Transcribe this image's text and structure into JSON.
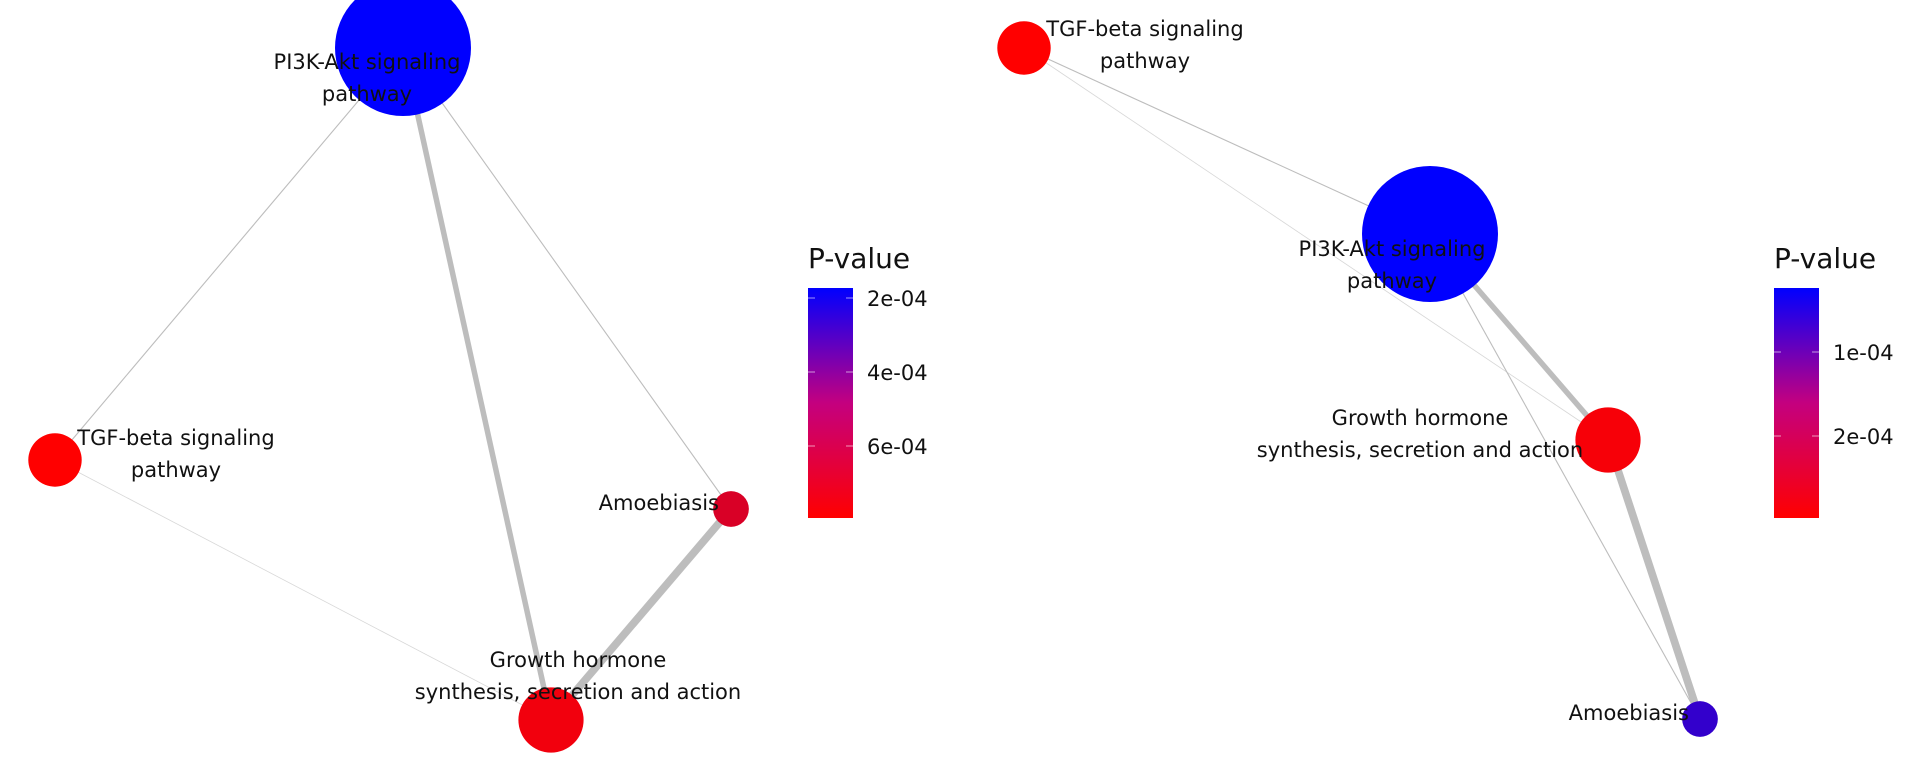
{
  "colors": {
    "low": "#ff0000",
    "high": "#0000ff",
    "edge": "#bdbdbd"
  },
  "chart_data": [
    {
      "type": "network",
      "legend_title": "P-value",
      "legend_ticks": [
        "2e-04",
        "4e-04",
        "6e-04"
      ],
      "nodes": [
        {
          "id": "pi3k",
          "label": [
            "PI3K-Akt signaling",
            "pathway"
          ],
          "color_level": 1.0,
          "size_level": 1.0
        },
        {
          "id": "tgf",
          "label": [
            "TGF-beta signaling",
            "pathway"
          ],
          "color_level": 0.0,
          "size_level": 0.3
        },
        {
          "id": "amoeb",
          "label": [
            "Amoebiasis"
          ],
          "color_level": 0.15,
          "size_level": 0.15
        },
        {
          "id": "gh",
          "label": [
            "Growth hormone",
            "synthesis, secretion and action"
          ],
          "color_level": 0.05,
          "size_level": 0.4
        }
      ],
      "edges": [
        {
          "source": "pi3k",
          "target": "tgf",
          "weight": 1
        },
        {
          "source": "pi3k",
          "target": "gh",
          "weight": 5
        },
        {
          "source": "pi3k",
          "target": "amoeb",
          "weight": 1
        },
        {
          "source": "tgf",
          "target": "gh",
          "weight": 0.6
        },
        {
          "source": "amoeb",
          "target": "gh",
          "weight": 7
        }
      ]
    },
    {
      "type": "network",
      "legend_title": "P-value",
      "legend_ticks": [
        "1e-04",
        "2e-04"
      ],
      "nodes": [
        {
          "id": "tgf",
          "label": [
            "TGF-beta signaling",
            "pathway"
          ],
          "color_level": 0.0,
          "size_level": 0.3
        },
        {
          "id": "pi3k",
          "label": [
            "PI3K-Akt signaling",
            "pathway"
          ],
          "color_level": 1.0,
          "size_level": 1.0
        },
        {
          "id": "gh",
          "label": [
            "Growth hormone",
            "synthesis, secretion and action"
          ],
          "color_level": 0.03,
          "size_level": 0.4
        },
        {
          "id": "amoeb",
          "label": [
            "Amoebiasis"
          ],
          "color_level": 0.8,
          "size_level": 0.15
        }
      ],
      "edges": [
        {
          "source": "tgf",
          "target": "pi3k",
          "weight": 1
        },
        {
          "source": "tgf",
          "target": "gh",
          "weight": 0.6
        },
        {
          "source": "pi3k",
          "target": "gh",
          "weight": 5
        },
        {
          "source": "pi3k",
          "target": "amoeb",
          "weight": 1
        },
        {
          "source": "gh",
          "target": "amoeb",
          "weight": 7
        }
      ]
    }
  ]
}
